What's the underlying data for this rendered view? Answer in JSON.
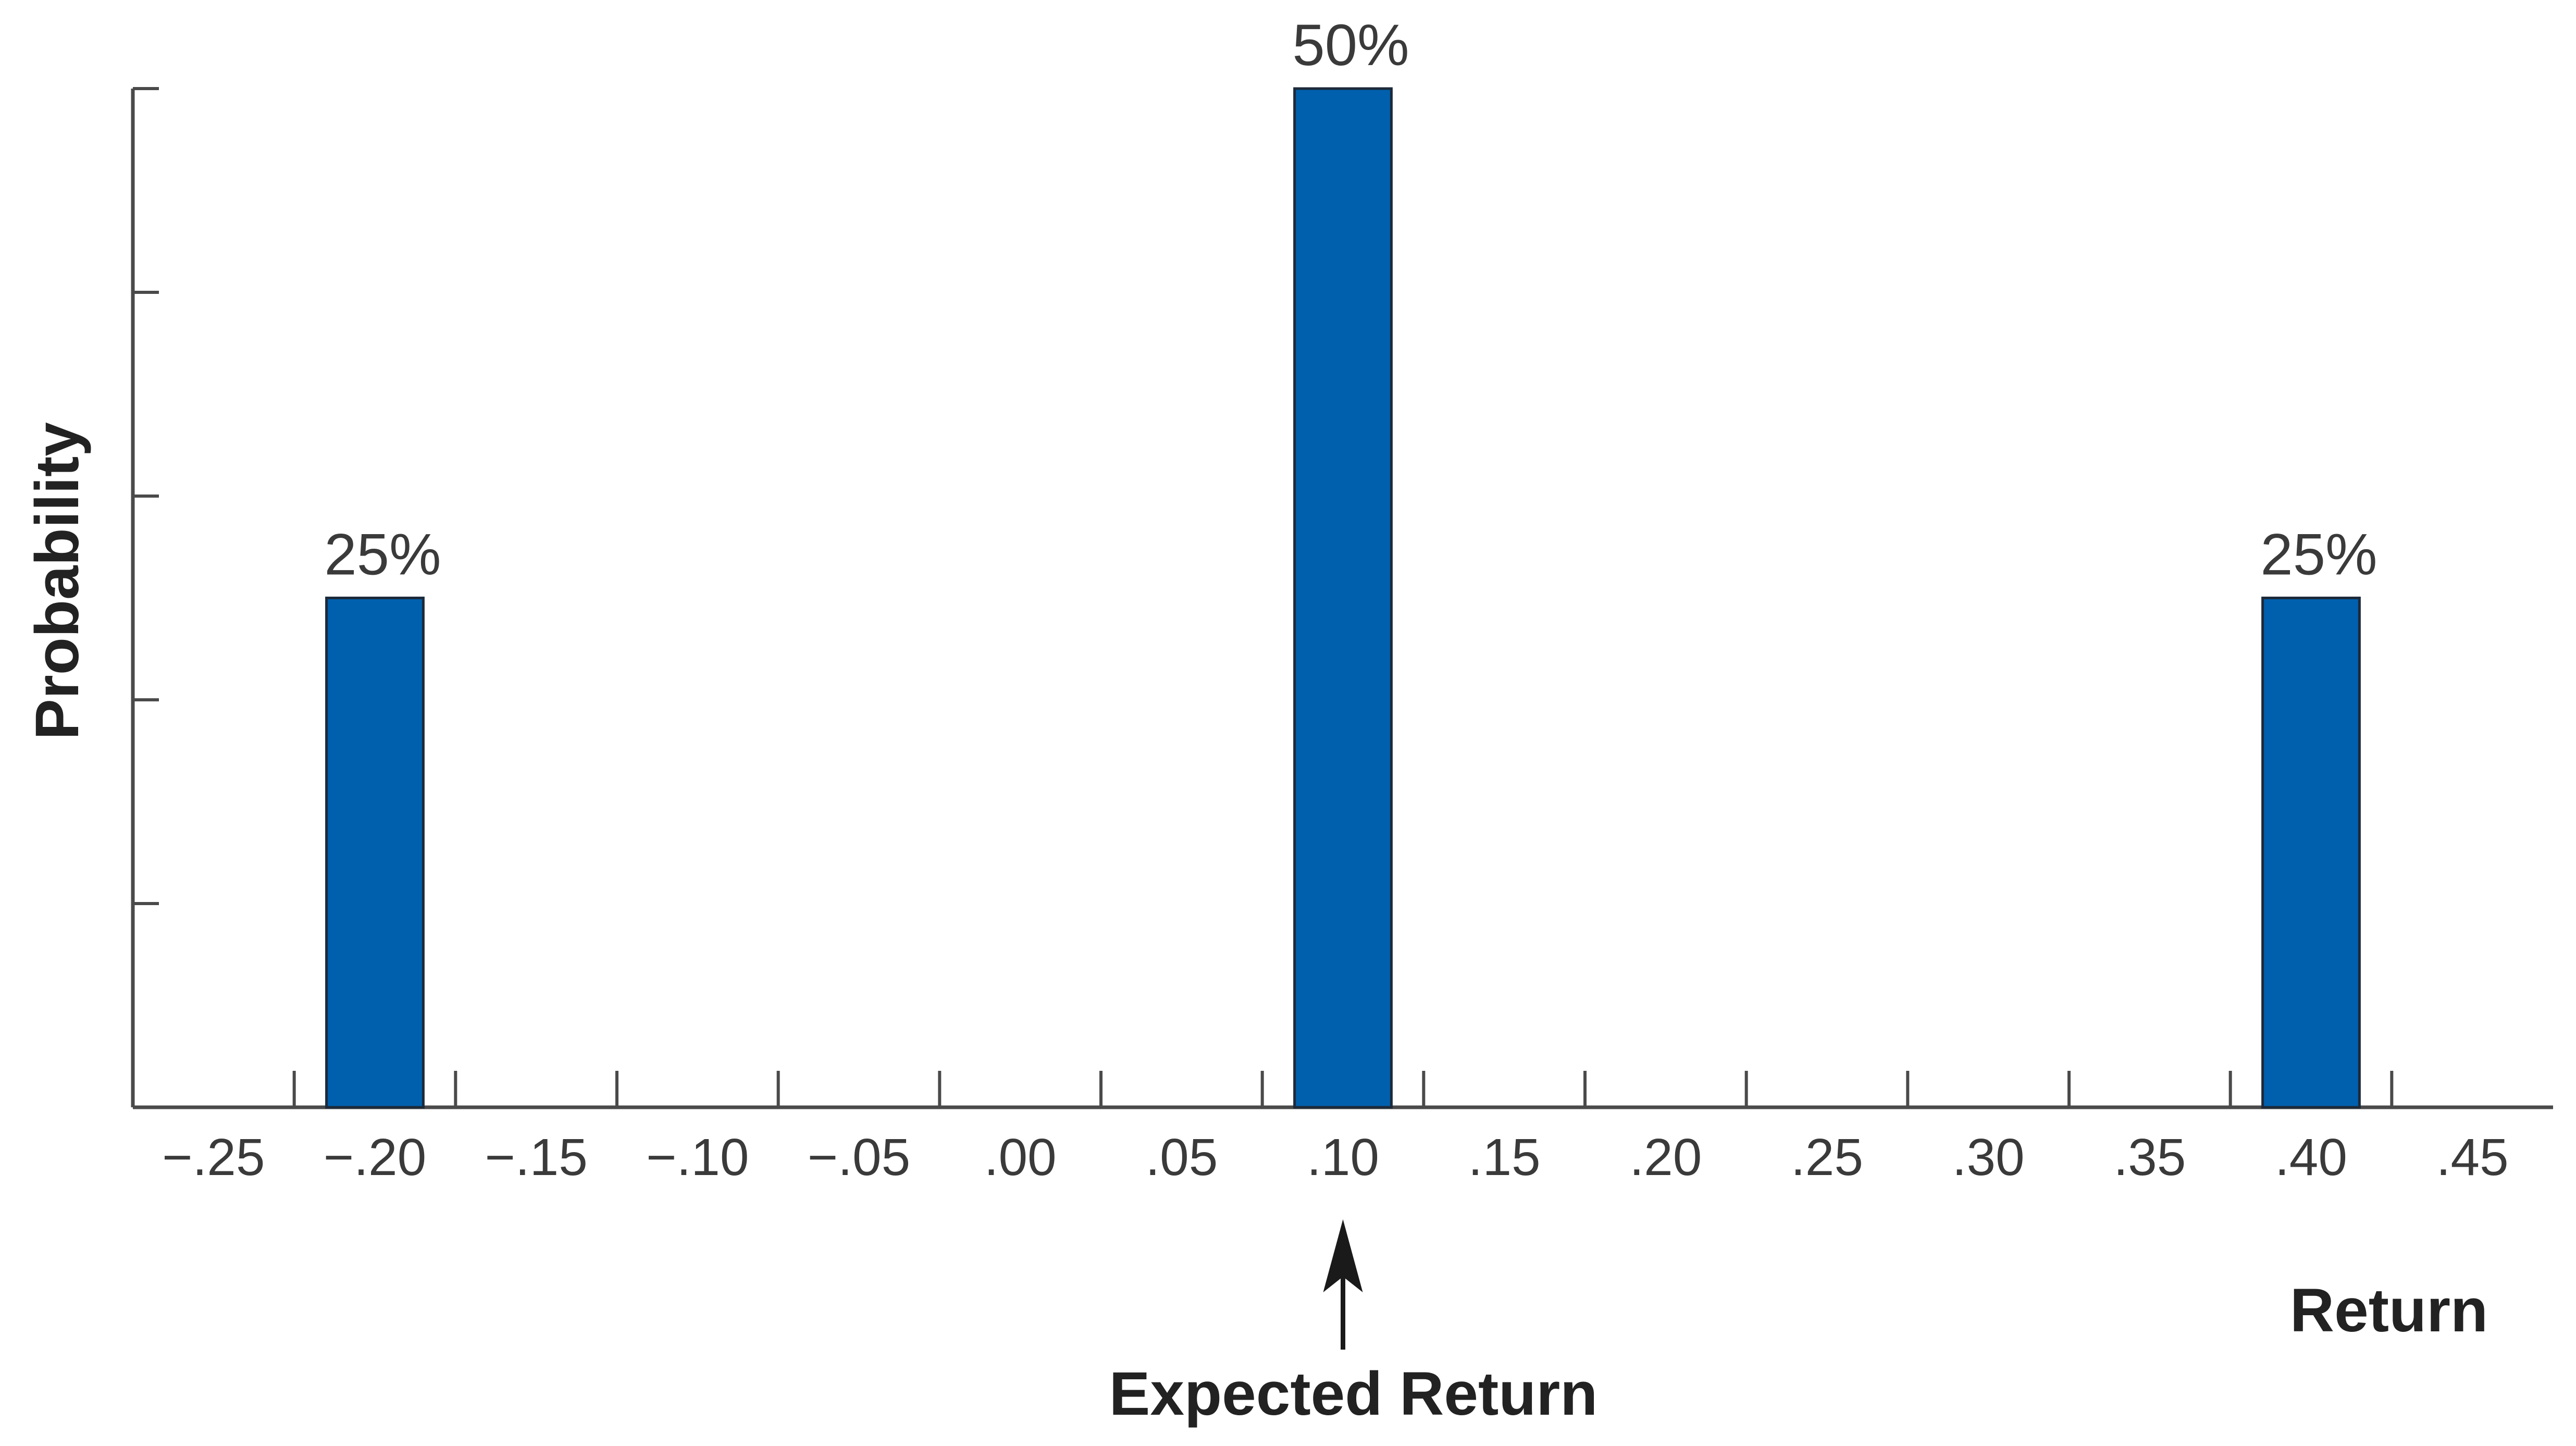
{
  "chart_data": {
    "type": "bar",
    "xlabel": "Return",
    "ylabel": "Probability",
    "xlim": [
      -0.275,
      0.475
    ],
    "ylim": [
      0,
      0.5
    ],
    "x_ticks": [
      -0.25,
      -0.2,
      -0.15,
      -0.1,
      -0.05,
      0.0,
      0.05,
      0.1,
      0.15,
      0.2,
      0.25,
      0.3,
      0.35,
      0.4,
      0.45
    ],
    "x_tick_labels": [
      "−.25",
      "−.20",
      "−.15",
      "−.10",
      "−.05",
      ".00",
      ".05",
      ".10",
      ".15",
      ".20",
      ".25",
      ".30",
      ".35",
      ".40",
      ".45"
    ],
    "y_ticks": [
      0.1,
      0.2,
      0.3,
      0.4,
      0.5
    ],
    "y_tick_labels_shown": false,
    "grid": false,
    "legend": false,
    "x": [
      -0.2,
      0.1,
      0.4
    ],
    "values": [
      0.25,
      0.5,
      0.25
    ],
    "data_labels": [
      "25%",
      "50%",
      "25%"
    ],
    "bar_color": "#0060ad",
    "annotation": {
      "text": "Expected Return",
      "x": 0.1,
      "type": "arrow"
    }
  }
}
